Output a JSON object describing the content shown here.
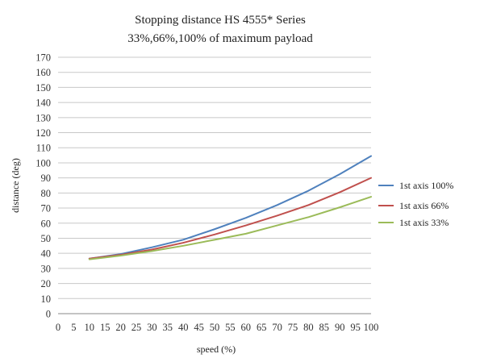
{
  "chart_data": {
    "type": "line",
    "title": "Stopping distance HS 4555* Series",
    "subtitle": "33%,66%,100% of maximum payload",
    "xlabel": "speed (%)",
    "ylabel": "distance (deg)",
    "x_ticks": [
      0,
      5,
      10,
      15,
      20,
      25,
      30,
      35,
      40,
      45,
      50,
      55,
      60,
      65,
      70,
      75,
      80,
      85,
      90,
      95,
      100
    ],
    "xlim": [
      0,
      100
    ],
    "ylim": [
      0,
      170
    ],
    "y_ticks": [
      0,
      10,
      20,
      30,
      40,
      50,
      60,
      70,
      80,
      90,
      100,
      110,
      120,
      130,
      140,
      150,
      160,
      170
    ],
    "grid": "horizontal",
    "legend": "right",
    "x": [
      10,
      20,
      30,
      40,
      50,
      60,
      70,
      80,
      90,
      100
    ],
    "series": [
      {
        "name": "1st axis 100%",
        "color": "#4f81bd",
        "values": [
          36.5,
          39.5,
          44,
          49,
          56,
          63.5,
          72,
          81.5,
          92.5,
          104.5
        ]
      },
      {
        "name": "1st axis 66%",
        "color": "#c0504d",
        "values": [
          36.5,
          39,
          42.5,
          47,
          52.5,
          58.5,
          65,
          72,
          80.5,
          90
        ]
      },
      {
        "name": "1st axis 33%",
        "color": "#9bbb59",
        "values": [
          36,
          38.5,
          41.5,
          45,
          49,
          53,
          58.5,
          64,
          70.5,
          77.5
        ]
      }
    ]
  }
}
